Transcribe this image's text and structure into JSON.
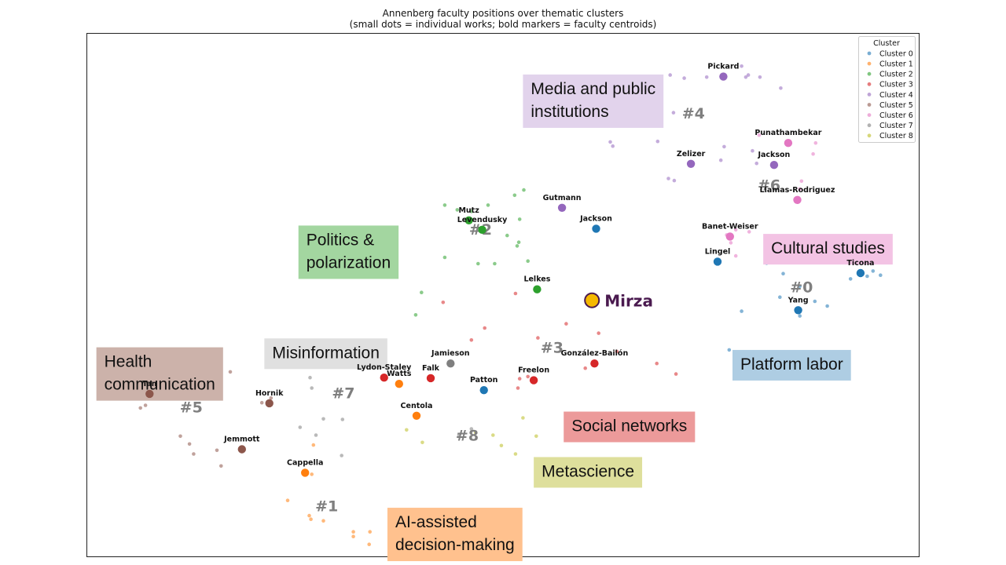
{
  "title": {
    "line1": "Annenberg faculty positions over thematic clusters",
    "line2": "(small dots = individual works; bold markers = faculty centroids)"
  },
  "colors": {
    "c0": "#1f77b4",
    "c1": "#ff7f0e",
    "c2": "#2ca02c",
    "c3": "#d62728",
    "c4": "#9467bd",
    "c5": "#8c564b",
    "c6": "#e377c2",
    "c7": "#7f7f7f",
    "c8": "#bcbd22",
    "highlight": "#f5b800"
  },
  "legend": {
    "title": "Cluster",
    "placement": "top-right",
    "items": [
      "Cluster 0",
      "Cluster 1",
      "Cluster 2",
      "Cluster 3",
      "Cluster 4",
      "Cluster 5",
      "Cluster 6",
      "Cluster 7",
      "Cluster 8"
    ]
  },
  "chart_data": {
    "type": "scatter",
    "title": "Annenberg faculty positions over thematic clusters",
    "subtitle": "(small dots = individual works; bold markers = faculty centroids)",
    "xlim": [
      0,
      1000
    ],
    "ylim": [
      0,
      1000
    ],
    "grid": false,
    "legend_placement": "top-right",
    "cluster_numbers": [
      {
        "label": "#0",
        "cluster": 0,
        "x": 859,
        "y": 516
      },
      {
        "label": "#1",
        "cluster": 1,
        "x": 288,
        "y": 97
      },
      {
        "label": "#2",
        "cluster": 2,
        "x": 473,
        "y": 626
      },
      {
        "label": "#3",
        "cluster": 3,
        "x": 559,
        "y": 400
      },
      {
        "label": "#4",
        "cluster": 4,
        "x": 729,
        "y": 848
      },
      {
        "label": "#5",
        "cluster": 5,
        "x": 125,
        "y": 286
      },
      {
        "label": "#6",
        "cluster": 6,
        "x": 820,
        "y": 711
      },
      {
        "label": "#7",
        "cluster": 7,
        "x": 308,
        "y": 313
      },
      {
        "label": "#8",
        "cluster": 8,
        "x": 457,
        "y": 232
      }
    ],
    "theme_labels": [
      {
        "lines": [
          "Media and public",
          "institutions"
        ],
        "cluster": 4,
        "x": 524,
        "y": 922
      },
      {
        "lines": [
          "Politics &",
          "polarization"
        ],
        "cluster": 2,
        "x": 254,
        "y": 633
      },
      {
        "lines": [
          "Cultural studies"
        ],
        "cluster": 6,
        "x": 813,
        "y": 617
      },
      {
        "lines": [
          "Health",
          "communication"
        ],
        "cluster": 5,
        "x": 11,
        "y": 400
      },
      {
        "lines": [
          "Misinformation"
        ],
        "cluster": 7,
        "x": 213,
        "y": 417
      },
      {
        "lines": [
          "Platform labor"
        ],
        "cluster": 0,
        "x": 776,
        "y": 395
      },
      {
        "lines": [
          "Social networks"
        ],
        "cluster": 3,
        "x": 573,
        "y": 277
      },
      {
        "lines": [
          "Metascience"
        ],
        "cluster": 8,
        "x": 537,
        "y": 190
      },
      {
        "lines": [
          "AI-assisted",
          "decision-making"
        ],
        "cluster": 1,
        "x": 361,
        "y": 93
      }
    ],
    "faculty": [
      {
        "name": "Pickard",
        "cluster": 4,
        "x": 765,
        "y": 918
      },
      {
        "name": "Punathambekar",
        "cluster": 6,
        "x": 843,
        "y": 791
      },
      {
        "name": "Zelizer",
        "cluster": 4,
        "x": 726,
        "y": 751
      },
      {
        "name": "Jackson",
        "cluster": 4,
        "x": 826,
        "y": 749
      },
      {
        "name": "Llamas-Rodriguez",
        "cluster": 6,
        "x": 854,
        "y": 682
      },
      {
        "name": "Gutmann",
        "cluster": 4,
        "x": 571,
        "y": 667
      },
      {
        "name": "Jackson",
        "cluster": 0,
        "x": 612,
        "y": 627
      },
      {
        "name": "Mutz",
        "cluster": 2,
        "x": 459,
        "y": 643
      },
      {
        "name": "Levendusky",
        "cluster": 2,
        "x": 475,
        "y": 625
      },
      {
        "name": "Banet-Weiser",
        "cluster": 6,
        "x": 773,
        "y": 612
      },
      {
        "name": "Lingel",
        "cluster": 0,
        "x": 758,
        "y": 564
      },
      {
        "name": "Ticona",
        "cluster": 0,
        "x": 930,
        "y": 542
      },
      {
        "name": "Lelkes",
        "cluster": 2,
        "x": 541,
        "y": 511
      },
      {
        "name": "Yang",
        "cluster": 0,
        "x": 855,
        "y": 471
      },
      {
        "name": "Jamieson",
        "cluster": 7,
        "x": 437,
        "y": 369
      },
      {
        "name": "González-Bailón",
        "cluster": 3,
        "x": 610,
        "y": 369
      },
      {
        "name": "Lydon-Staley",
        "cluster": 3,
        "x": 357,
        "y": 342
      },
      {
        "name": "Watts",
        "cluster": 1,
        "x": 375,
        "y": 330
      },
      {
        "name": "Falk",
        "cluster": 3,
        "x": 413,
        "y": 341
      },
      {
        "name": "Freelon",
        "cluster": 3,
        "x": 537,
        "y": 337
      },
      {
        "name": "Patton",
        "cluster": 0,
        "x": 477,
        "y": 318
      },
      {
        "name": "Tan",
        "cluster": 5,
        "x": 75,
        "y": 311
      },
      {
        "name": "Hornik",
        "cluster": 5,
        "x": 219,
        "y": 293
      },
      {
        "name": "Centola",
        "cluster": 1,
        "x": 396,
        "y": 269
      },
      {
        "name": "Jemmott",
        "cluster": 5,
        "x": 186,
        "y": 205
      },
      {
        "name": "Cappella",
        "cluster": 1,
        "x": 262,
        "y": 160
      }
    ],
    "highlight": {
      "name": "Mirza",
      "x": 607,
      "y": 490
    },
    "works": [
      {
        "cluster": 4,
        "x": 701,
        "y": 921
      },
      {
        "cluster": 4,
        "x": 718,
        "y": 915
      },
      {
        "cluster": 4,
        "x": 745,
        "y": 917
      },
      {
        "cluster": 4,
        "x": 787,
        "y": 938
      },
      {
        "cluster": 4,
        "x": 792,
        "y": 917
      },
      {
        "cluster": 4,
        "x": 795,
        "y": 921
      },
      {
        "cluster": 4,
        "x": 809,
        "y": 917
      },
      {
        "cluster": 4,
        "x": 834,
        "y": 896
      },
      {
        "cluster": 4,
        "x": 705,
        "y": 849
      },
      {
        "cluster": 4,
        "x": 629,
        "y": 793
      },
      {
        "cluster": 4,
        "x": 632,
        "y": 785
      },
      {
        "cluster": 4,
        "x": 686,
        "y": 794
      },
      {
        "cluster": 4,
        "x": 762,
        "y": 758
      },
      {
        "cluster": 4,
        "x": 699,
        "y": 723
      },
      {
        "cluster": 4,
        "x": 706,
        "y": 719
      },
      {
        "cluster": 4,
        "x": 805,
        "y": 752
      },
      {
        "cluster": 4,
        "x": 766,
        "y": 784
      },
      {
        "cluster": 4,
        "x": 800,
        "y": 776
      },
      {
        "cluster": 6,
        "x": 808,
        "y": 806
      },
      {
        "cluster": 6,
        "x": 876,
        "y": 791
      },
      {
        "cluster": 6,
        "x": 873,
        "y": 770
      },
      {
        "cluster": 6,
        "x": 859,
        "y": 718
      },
      {
        "cluster": 6,
        "x": 857,
        "y": 703
      },
      {
        "cluster": 6,
        "x": 780,
        "y": 625
      },
      {
        "cluster": 6,
        "x": 769,
        "y": 615
      },
      {
        "cluster": 6,
        "x": 774,
        "y": 600
      },
      {
        "cluster": 6,
        "x": 780,
        "y": 575
      },
      {
        "cluster": 6,
        "x": 796,
        "y": 621
      },
      {
        "cluster": 0,
        "x": 817,
        "y": 561
      },
      {
        "cluster": 0,
        "x": 837,
        "y": 541
      },
      {
        "cluster": 0,
        "x": 896,
        "y": 569
      },
      {
        "cluster": 0,
        "x": 918,
        "y": 531
      },
      {
        "cluster": 0,
        "x": 938,
        "y": 536
      },
      {
        "cluster": 0,
        "x": 945,
        "y": 546
      },
      {
        "cluster": 0,
        "x": 954,
        "y": 538
      },
      {
        "cluster": 0,
        "x": 857,
        "y": 517
      },
      {
        "cluster": 0,
        "x": 833,
        "y": 496
      },
      {
        "cluster": 0,
        "x": 890,
        "y": 479
      },
      {
        "cluster": 0,
        "x": 875,
        "y": 488
      },
      {
        "cluster": 0,
        "x": 857,
        "y": 460
      },
      {
        "cluster": 0,
        "x": 787,
        "y": 469
      },
      {
        "cluster": 0,
        "x": 772,
        "y": 395
      },
      {
        "cluster": 2,
        "x": 462,
        "y": 660
      },
      {
        "cluster": 2,
        "x": 482,
        "y": 672
      },
      {
        "cluster": 2,
        "x": 514,
        "y": 691
      },
      {
        "cluster": 2,
        "x": 525,
        "y": 701
      },
      {
        "cluster": 2,
        "x": 430,
        "y": 672
      },
      {
        "cluster": 2,
        "x": 445,
        "y": 663
      },
      {
        "cluster": 2,
        "x": 520,
        "y": 645
      },
      {
        "cluster": 2,
        "x": 505,
        "y": 614
      },
      {
        "cluster": 2,
        "x": 519,
        "y": 601
      },
      {
        "cluster": 2,
        "x": 517,
        "y": 594
      },
      {
        "cluster": 2,
        "x": 430,
        "y": 572
      },
      {
        "cluster": 2,
        "x": 470,
        "y": 560
      },
      {
        "cluster": 2,
        "x": 490,
        "y": 560
      },
      {
        "cluster": 2,
        "x": 530,
        "y": 565
      },
      {
        "cluster": 2,
        "x": 402,
        "y": 505
      },
      {
        "cluster": 2,
        "x": 395,
        "y": 462
      },
      {
        "cluster": 3,
        "x": 515,
        "y": 503
      },
      {
        "cluster": 3,
        "x": 428,
        "y": 486
      },
      {
        "cluster": 3,
        "x": 576,
        "y": 445
      },
      {
        "cluster": 3,
        "x": 542,
        "y": 418
      },
      {
        "cluster": 3,
        "x": 478,
        "y": 437
      },
      {
        "cluster": 3,
        "x": 462,
        "y": 414
      },
      {
        "cluster": 3,
        "x": 615,
        "y": 427
      },
      {
        "cluster": 3,
        "x": 637,
        "y": 392
      },
      {
        "cluster": 3,
        "x": 685,
        "y": 369
      },
      {
        "cluster": 3,
        "x": 708,
        "y": 349
      },
      {
        "cluster": 3,
        "x": 599,
        "y": 360
      },
      {
        "cluster": 3,
        "x": 520,
        "y": 340
      },
      {
        "cluster": 3,
        "x": 518,
        "y": 322
      },
      {
        "cluster": 3,
        "x": 530,
        "y": 344
      },
      {
        "cluster": 7,
        "x": 322,
        "y": 409
      },
      {
        "cluster": 7,
        "x": 270,
        "y": 374
      },
      {
        "cluster": 7,
        "x": 268,
        "y": 342
      },
      {
        "cluster": 7,
        "x": 270,
        "y": 322
      },
      {
        "cluster": 7,
        "x": 303,
        "y": 316
      },
      {
        "cluster": 7,
        "x": 284,
        "y": 263
      },
      {
        "cluster": 7,
        "x": 307,
        "y": 262
      },
      {
        "cluster": 7,
        "x": 256,
        "y": 247
      },
      {
        "cluster": 7,
        "x": 275,
        "y": 232
      },
      {
        "cluster": 7,
        "x": 306,
        "y": 193
      },
      {
        "cluster": 7,
        "x": 447,
        "y": 232
      },
      {
        "cluster": 7,
        "x": 462,
        "y": 244
      },
      {
        "cluster": 5,
        "x": 92,
        "y": 365
      },
      {
        "cluster": 5,
        "x": 86,
        "y": 345
      },
      {
        "cluster": 5,
        "x": 60,
        "y": 333
      },
      {
        "cluster": 5,
        "x": 50,
        "y": 324
      },
      {
        "cluster": 5,
        "x": 53,
        "y": 310
      },
      {
        "cluster": 5,
        "x": 70,
        "y": 289
      },
      {
        "cluster": 5,
        "x": 64,
        "y": 284
      },
      {
        "cluster": 5,
        "x": 155,
        "y": 365
      },
      {
        "cluster": 5,
        "x": 172,
        "y": 353
      },
      {
        "cluster": 5,
        "x": 112,
        "y": 230
      },
      {
        "cluster": 5,
        "x": 123,
        "y": 215
      },
      {
        "cluster": 5,
        "x": 156,
        "y": 203
      },
      {
        "cluster": 5,
        "x": 128,
        "y": 196
      },
      {
        "cluster": 5,
        "x": 161,
        "y": 173
      },
      {
        "cluster": 5,
        "x": 221,
        "y": 303
      },
      {
        "cluster": 5,
        "x": 210,
        "y": 294
      },
      {
        "cluster": 1,
        "x": 270,
        "y": 157
      },
      {
        "cluster": 1,
        "x": 241,
        "y": 107
      },
      {
        "cluster": 1,
        "x": 267,
        "y": 78
      },
      {
        "cluster": 1,
        "x": 269,
        "y": 71
      },
      {
        "cluster": 1,
        "x": 284,
        "y": 68
      },
      {
        "cluster": 1,
        "x": 320,
        "y": 47
      },
      {
        "cluster": 1,
        "x": 320,
        "y": 38
      },
      {
        "cluster": 1,
        "x": 340,
        "y": 47
      },
      {
        "cluster": 1,
        "x": 339,
        "y": 23
      },
      {
        "cluster": 1,
        "x": 272,
        "y": 213
      },
      {
        "cluster": 8,
        "x": 384,
        "y": 242
      },
      {
        "cluster": 8,
        "x": 403,
        "y": 218
      },
      {
        "cluster": 8,
        "x": 488,
        "y": 232
      },
      {
        "cluster": 8,
        "x": 524,
        "y": 265
      },
      {
        "cluster": 8,
        "x": 540,
        "y": 230
      },
      {
        "cluster": 8,
        "x": 498,
        "y": 212
      },
      {
        "cluster": 8,
        "x": 515,
        "y": 196
      },
      {
        "cluster": 8,
        "x": 467,
        "y": 237
      }
    ]
  }
}
